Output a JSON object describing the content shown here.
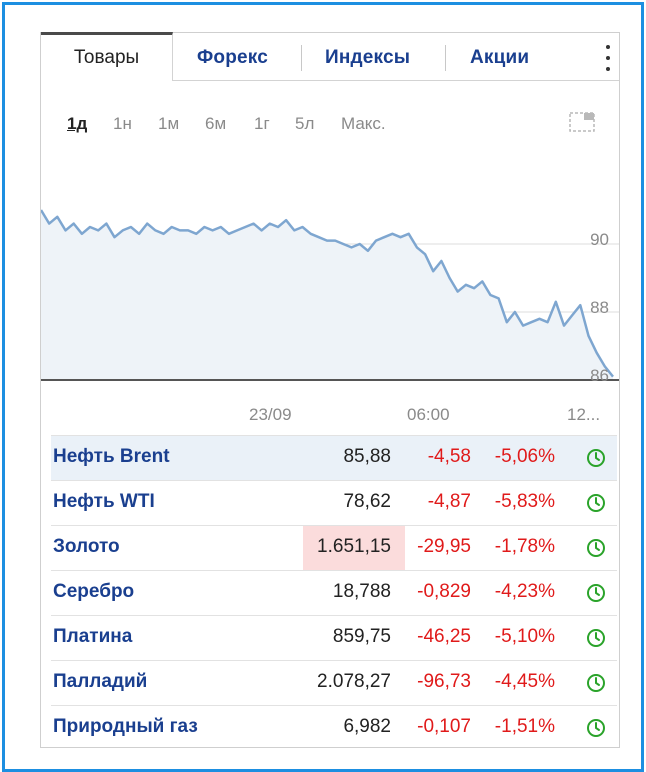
{
  "tabs": [
    {
      "label": "Товары",
      "active": true
    },
    {
      "label": "Форекс"
    },
    {
      "label": "Индексы"
    },
    {
      "label": "Акции"
    }
  ],
  "ranges": [
    {
      "label": "1д",
      "active": true
    },
    {
      "label": "1н"
    },
    {
      "label": "1м"
    },
    {
      "label": "6м"
    },
    {
      "label": "1г"
    },
    {
      "label": "5л"
    },
    {
      "label": "Макс."
    }
  ],
  "chart_data": {
    "type": "area",
    "y_ticks": [
      "90",
      "88",
      "86"
    ],
    "ylim": [
      86,
      91.5
    ],
    "x_ticks": [
      "23/09",
      "06:00",
      "12..."
    ],
    "values": [
      91.0,
      90.6,
      90.8,
      90.4,
      90.6,
      90.3,
      90.5,
      90.4,
      90.6,
      90.2,
      90.4,
      90.5,
      90.3,
      90.6,
      90.4,
      90.3,
      90.5,
      90.4,
      90.4,
      90.3,
      90.5,
      90.4,
      90.5,
      90.3,
      90.4,
      90.5,
      90.6,
      90.4,
      90.6,
      90.5,
      90.7,
      90.4,
      90.5,
      90.3,
      90.2,
      90.1,
      90.1,
      90.0,
      89.9,
      90.0,
      89.8,
      90.1,
      90.2,
      90.3,
      90.2,
      90.3,
      89.9,
      89.7,
      89.2,
      89.5,
      89.0,
      88.6,
      88.8,
      88.7,
      88.9,
      88.5,
      88.4,
      87.7,
      88.0,
      87.6,
      87.7,
      87.8,
      87.7,
      88.3,
      87.6,
      87.9,
      88.2,
      87.3,
      86.8,
      86.4,
      86.1
    ],
    "line_color": "#7ea6d0",
    "fill_color": "#eef3f8"
  },
  "quotes": [
    {
      "name": "Нефть Brent",
      "price": "85,88",
      "change": "-4,58",
      "pct": "-5,06%",
      "highlight_row": true
    },
    {
      "name": "Нефть WTI",
      "price": "78,62",
      "change": "-4,87",
      "pct": "-5,83%"
    },
    {
      "name": "Золото",
      "price": "1.651,15",
      "change": "-29,95",
      "pct": "-1,78%",
      "highlight_price": true
    },
    {
      "name": "Серебро",
      "price": "18,788",
      "change": "-0,829",
      "pct": "-4,23%"
    },
    {
      "name": "Платина",
      "price": "859,75",
      "change": "-46,25",
      "pct": "-5,10%"
    },
    {
      "name": "Палладий",
      "price": "2.078,27",
      "change": "-96,73",
      "pct": "-4,45%"
    },
    {
      "name": "Природный газ",
      "price": "6,982",
      "change": "-0,107",
      "pct": "-1,51%"
    }
  ],
  "colors": {
    "accent": "#1a3f8f",
    "negative": "#e01a1a",
    "market_open": "#2aa32a",
    "frame": "#1d8fe1"
  }
}
